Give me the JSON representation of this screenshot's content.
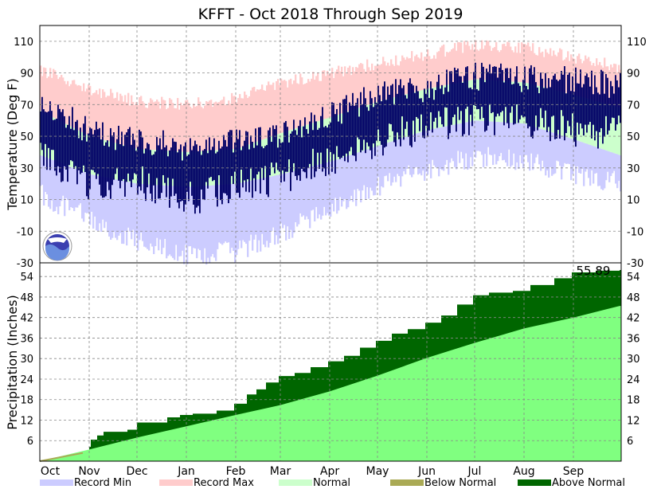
{
  "title": "KFFT - Oct 2018 Through Sep 2019",
  "colors": {
    "record_min": "#ccccff",
    "record_max": "#ffcccc",
    "normal": "#ccffcc",
    "observed": "#000066",
    "normal_precip": "#80ff80",
    "above_normal": "#006600",
    "below_normal": "#aaaa55"
  },
  "logo_icon": "noaa-logo-icon",
  "chart_data": [
    {
      "type": "bar",
      "name": "temperature",
      "ylabel": "Temperature (Deg F)",
      "ylim": [
        -30,
        120
      ],
      "yticks": [
        -30,
        -10,
        10,
        30,
        50,
        70,
        90,
        110
      ],
      "grid": true,
      "x_start": "2018-10-01",
      "x_end": "2019-09-30",
      "months": [
        {
          "label": "Oct",
          "start": "2018-10-01",
          "normal_low": 38,
          "normal_high": 66,
          "record_low": 20,
          "record_high": 88,
          "obs_low": 36,
          "obs_high": 74
        },
        {
          "label": "Nov",
          "start": "2018-11-01",
          "normal_low": 26,
          "normal_high": 50,
          "record_low": 5,
          "record_high": 76,
          "obs_low": 20,
          "obs_high": 52
        },
        {
          "label": "Dec",
          "start": "2018-12-01",
          "normal_low": 20,
          "normal_high": 42,
          "record_low": -10,
          "record_high": 68,
          "obs_low": 22,
          "obs_high": 48
        },
        {
          "label": "Jan",
          "start": "2019-01-01",
          "normal_low": 18,
          "normal_high": 40,
          "record_low": -18,
          "record_high": 66,
          "obs_low": 10,
          "obs_high": 42
        },
        {
          "label": "Feb",
          "start": "2019-02-01",
          "normal_low": 20,
          "normal_high": 42,
          "record_low": -16,
          "record_high": 70,
          "obs_low": 18,
          "obs_high": 46
        },
        {
          "label": "Mar",
          "start": "2019-03-01",
          "normal_low": 26,
          "normal_high": 52,
          "record_low": -4,
          "record_high": 80,
          "obs_low": 24,
          "obs_high": 50
        },
        {
          "label": "Apr",
          "start": "2019-04-01",
          "normal_low": 34,
          "normal_high": 62,
          "record_low": 12,
          "record_high": 86,
          "obs_low": 36,
          "obs_high": 64
        },
        {
          "label": "May",
          "start": "2019-05-01",
          "normal_low": 44,
          "normal_high": 72,
          "record_low": 26,
          "record_high": 92,
          "obs_low": 48,
          "obs_high": 76
        },
        {
          "label": "Jun",
          "start": "2019-06-01",
          "normal_low": 54,
          "normal_high": 80,
          "record_low": 36,
          "record_high": 98,
          "obs_low": 56,
          "obs_high": 80
        },
        {
          "label": "Jul",
          "start": "2019-07-01",
          "normal_low": 60,
          "normal_high": 86,
          "record_low": 44,
          "record_high": 104,
          "obs_low": 62,
          "obs_high": 88
        },
        {
          "label": "Aug",
          "start": "2019-08-01",
          "normal_low": 58,
          "normal_high": 84,
          "record_low": 42,
          "record_high": 102,
          "obs_low": 60,
          "obs_high": 86
        },
        {
          "label": "Sep",
          "start": "2019-09-01",
          "normal_low": 48,
          "normal_high": 76,
          "record_low": 32,
          "record_high": 96,
          "obs_low": 54,
          "obs_high": 86
        },
        {
          "label": "",
          "start": "2019-09-30",
          "normal_low": 38,
          "normal_high": 68,
          "record_low": 28,
          "record_high": 90,
          "obs_low": 52,
          "obs_high": 82
        }
      ]
    },
    {
      "type": "area",
      "name": "precipitation",
      "ylabel": "Precipitation (Inches)",
      "ylim": [
        0,
        58
      ],
      "yticks": [
        6,
        12,
        18,
        24,
        30,
        36,
        42,
        48,
        54
      ],
      "grid": true,
      "annotation": "55.89",
      "normal_cumulative": [
        {
          "date": "2018-10-01",
          "value": 0
        },
        {
          "date": "2018-11-01",
          "value": 3.4
        },
        {
          "date": "2018-12-01",
          "value": 6.9
        },
        {
          "date": "2019-01-01",
          "value": 10.2
        },
        {
          "date": "2019-02-01",
          "value": 13.5
        },
        {
          "date": "2019-03-01",
          "value": 16.4
        },
        {
          "date": "2019-04-01",
          "value": 20.4
        },
        {
          "date": "2019-05-01",
          "value": 25.0
        },
        {
          "date": "2019-06-01",
          "value": 30.2
        },
        {
          "date": "2019-07-01",
          "value": 34.6
        },
        {
          "date": "2019-08-01",
          "value": 38.8
        },
        {
          "date": "2019-09-01",
          "value": 42.0
        },
        {
          "date": "2019-09-30",
          "value": 45.4
        }
      ],
      "observed_cumulative": [
        {
          "date": "2018-10-01",
          "value": 0
        },
        {
          "date": "2018-10-15",
          "value": 1.2
        },
        {
          "date": "2018-10-28",
          "value": 2.6
        },
        {
          "date": "2018-11-01",
          "value": 4.2
        },
        {
          "date": "2018-11-02",
          "value": 6.3
        },
        {
          "date": "2018-11-06",
          "value": 7.5
        },
        {
          "date": "2018-11-10",
          "value": 8.6
        },
        {
          "date": "2018-11-25",
          "value": 9.2
        },
        {
          "date": "2018-12-01",
          "value": 11.3
        },
        {
          "date": "2018-12-20",
          "value": 12.8
        },
        {
          "date": "2018-12-28",
          "value": 13.5
        },
        {
          "date": "2019-01-05",
          "value": 13.9
        },
        {
          "date": "2019-01-20",
          "value": 14.8
        },
        {
          "date": "2019-01-31",
          "value": 16.8
        },
        {
          "date": "2019-02-08",
          "value": 19.5
        },
        {
          "date": "2019-02-14",
          "value": 21.0
        },
        {
          "date": "2019-02-20",
          "value": 23.0
        },
        {
          "date": "2019-02-28",
          "value": 24.9
        },
        {
          "date": "2019-03-10",
          "value": 25.8
        },
        {
          "date": "2019-03-20",
          "value": 27.5
        },
        {
          "date": "2019-03-31",
          "value": 29.2
        },
        {
          "date": "2019-04-10",
          "value": 30.8
        },
        {
          "date": "2019-04-20",
          "value": 33.2
        },
        {
          "date": "2019-04-30",
          "value": 35.2
        },
        {
          "date": "2019-05-10",
          "value": 37.3
        },
        {
          "date": "2019-05-20",
          "value": 38.6
        },
        {
          "date": "2019-05-31",
          "value": 40.5
        },
        {
          "date": "2019-06-10",
          "value": 42.6
        },
        {
          "date": "2019-06-20",
          "value": 45.8
        },
        {
          "date": "2019-06-30",
          "value": 48.5
        },
        {
          "date": "2019-07-10",
          "value": 49.3
        },
        {
          "date": "2019-07-25",
          "value": 49.8
        },
        {
          "date": "2019-08-05",
          "value": 51.5
        },
        {
          "date": "2019-08-20",
          "value": 53.5
        },
        {
          "date": "2019-08-31",
          "value": 55.2
        },
        {
          "date": "2019-09-15",
          "value": 55.7
        },
        {
          "date": "2019-09-30",
          "value": 55.89
        }
      ]
    }
  ],
  "legend": [
    {
      "label": "Record Min",
      "color": "#ccccff"
    },
    {
      "label": "Record Max",
      "color": "#ffcccc"
    },
    {
      "label": "Normal",
      "color": "#ccffcc"
    },
    {
      "label": "Below Normal",
      "color": "#aaaa55"
    },
    {
      "label": "Above Normal",
      "color": "#006600"
    }
  ]
}
